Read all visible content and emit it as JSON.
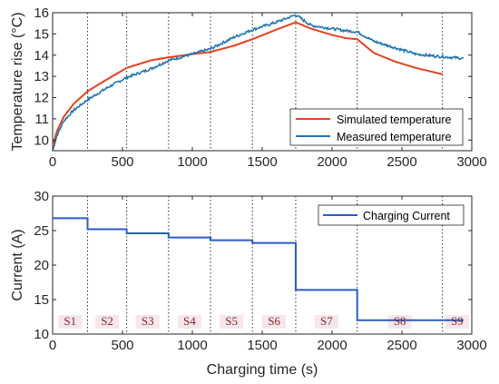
{
  "chart_data": [
    {
      "type": "line",
      "ylabel": "Temperature rise (°C)",
      "xlabel": "",
      "xlim": [
        0,
        3000
      ],
      "ylim": [
        9.5,
        16
      ],
      "xticks": [
        0,
        500,
        1000,
        1500,
        2000,
        2500,
        3000
      ],
      "yticks": [
        10,
        11,
        12,
        13,
        14,
        15,
        16
      ],
      "legend_position": "bottom-right",
      "stage_boundaries": [
        250,
        530,
        830,
        1130,
        1430,
        1740,
        2180,
        2790
      ],
      "series": [
        {
          "name": "Simulated temperature",
          "color": "#e8401c",
          "x": [
            0,
            30,
            80,
            150,
            250,
            400,
            530,
            700,
            830,
            1000,
            1130,
            1300,
            1430,
            1600,
            1740,
            1850,
            2000,
            2100,
            2180,
            2300,
            2450,
            2600,
            2790
          ],
          "y": [
            9.7,
            10.4,
            11.1,
            11.7,
            12.3,
            12.9,
            13.4,
            13.75,
            13.9,
            14.05,
            14.15,
            14.45,
            14.75,
            15.2,
            15.55,
            15.25,
            14.95,
            14.8,
            14.75,
            14.1,
            13.7,
            13.4,
            13.1
          ]
        },
        {
          "name": "Measured temperature",
          "color": "#1f77b4",
          "x": [
            0,
            30,
            80,
            150,
            250,
            400,
            530,
            700,
            830,
            1000,
            1130,
            1300,
            1430,
            1600,
            1740,
            1850,
            2000,
            2100,
            2180,
            2300,
            2450,
            2600,
            2750,
            2940
          ],
          "y": [
            9.5,
            10.2,
            10.9,
            11.4,
            11.9,
            12.5,
            12.95,
            13.35,
            13.75,
            14.05,
            14.3,
            14.85,
            15.2,
            15.55,
            15.9,
            15.4,
            15.25,
            15.15,
            15.1,
            14.65,
            14.35,
            14.05,
            13.95,
            13.85
          ]
        }
      ]
    },
    {
      "type": "line",
      "ylabel": "Current (A)",
      "xlabel": "Charging time (s)",
      "xlim": [
        0,
        3000
      ],
      "ylim": [
        10,
        30
      ],
      "xticks": [
        0,
        500,
        1000,
        1500,
        2000,
        2500,
        3000
      ],
      "yticks": [
        10,
        15,
        20,
        25,
        30
      ],
      "legend_position": "top-right",
      "stage_boundaries": [
        250,
        530,
        830,
        1130,
        1430,
        1740,
        2180,
        2790
      ],
      "stage_labels": [
        "S1",
        "S2",
        "S3",
        "S4",
        "S5",
        "S6",
        "S7",
        "S8",
        "S9"
      ],
      "series": [
        {
          "name": "Charging Current",
          "color": "#2a5cc8",
          "steps": [
            {
              "x0": 0,
              "x1": 250,
              "y": 26.8
            },
            {
              "x0": 250,
              "x1": 530,
              "y": 25.2
            },
            {
              "x0": 530,
              "x1": 830,
              "y": 24.6
            },
            {
              "x0": 830,
              "x1": 1130,
              "y": 24.0
            },
            {
              "x0": 1130,
              "x1": 1430,
              "y": 23.6
            },
            {
              "x0": 1430,
              "x1": 1740,
              "y": 23.2
            },
            {
              "x0": 1740,
              "x1": 2180,
              "y": 16.4
            },
            {
              "x0": 2180,
              "x1": 2940,
              "y": 12.0
            }
          ]
        }
      ]
    }
  ]
}
